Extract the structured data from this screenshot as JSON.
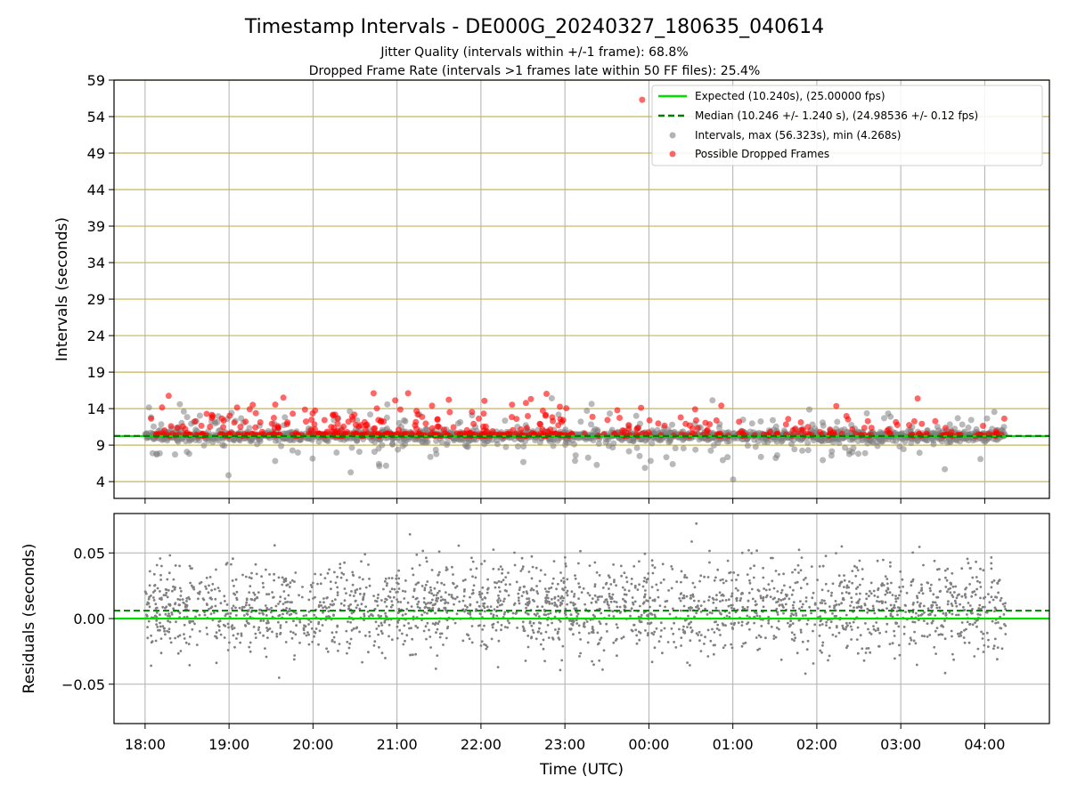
{
  "figure": {
    "title": "Timestamp Intervals - DE000G_20240327_180635_040614",
    "subtitle_1": "Jitter Quality (intervals within +/-1 frame): 68.8%",
    "subtitle_2": "Dropped Frame Rate (intervals >1 frames late within 50 FF files): 25.4%"
  },
  "colors": {
    "expected": "#00e000",
    "median": "#008000",
    "intervals": "#808080",
    "dropped": "#ff0000",
    "hgrid_top": "#c8b45a",
    "vgrid": "#b0b0b0"
  },
  "chart_data": [
    {
      "type": "scatter",
      "ylabel": "Intervals (seconds)",
      "xlabel": "",
      "x_ticks": [
        "18:00",
        "19:00",
        "20:00",
        "21:00",
        "22:00",
        "23:00",
        "00:00",
        "01:00",
        "02:00",
        "03:00",
        "04:00"
      ],
      "x_range_hours_utc": [
        17.63,
        28.77
      ],
      "ylim": [
        1.7,
        59
      ],
      "y_ticks": [
        4,
        9,
        14,
        19,
        24,
        29,
        34,
        39,
        44,
        49,
        54,
        59
      ],
      "grid": true,
      "legend_position": "top-right",
      "legend": [
        "Expected (10.240s), (25.00000 fps)",
        "Median (10.246 +/- 1.240 s), (24.98536 +/- 0.12 fps)",
        "Intervals, max (56.323s), min (4.268s)",
        "Possible Dropped Frames"
      ],
      "expected_interval": 10.24,
      "median_interval": 10.246,
      "interval_max": 56.323,
      "interval_min": 4.268,
      "time_span_hours_utc": [
        18.0,
        28.25
      ],
      "series_approx": {
        "intervals_baseline": 10.24,
        "intervals_spread": [
          4.3,
          16.2
        ],
        "dropped_range": [
          10.0,
          16.1
        ],
        "outlier": {
          "x": 23.92,
          "y": 56.3
        }
      }
    },
    {
      "type": "scatter",
      "ylabel": "Residuals (seconds)",
      "xlabel": "Time (UTC)",
      "x_ticks": [
        "18:00",
        "19:00",
        "20:00",
        "21:00",
        "22:00",
        "23:00",
        "00:00",
        "01:00",
        "02:00",
        "03:00",
        "04:00"
      ],
      "ylim": [
        -0.08,
        0.08
      ],
      "y_ticks": [
        "−0.05",
        "0.00",
        "0.05"
      ],
      "y_tick_values": [
        -0.05,
        0.0,
        0.05
      ],
      "expected_residual": 0.0,
      "median_residual": 0.006,
      "grid": true
    }
  ]
}
